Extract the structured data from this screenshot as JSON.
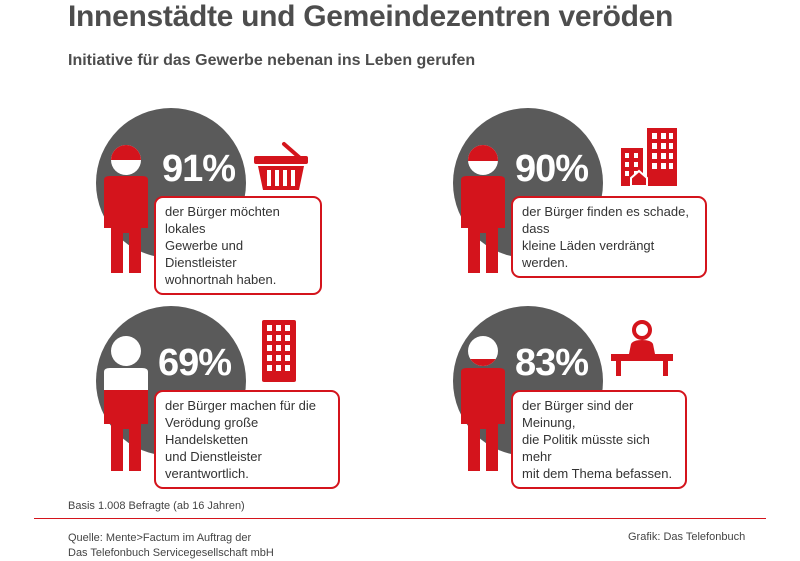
{
  "header": {
    "title": "Innenstädte und Gemeindezentren veröden",
    "subtitle": "Initiative für das Gewerbe nebenan ins Leben gerufen"
  },
  "chart_data": {
    "type": "infographic",
    "unit": "%",
    "items": [
      {
        "value": 91,
        "label": "91%",
        "text": "der Bürger möchten lokales\nGewerbe und Dienstleister\nwohnortnah haben.",
        "icon": "shopping-basket-icon"
      },
      {
        "value": 90,
        "label": "90%",
        "text": "der Bürger finden es schade, dass\nkleine Läden verdrängt werden.",
        "icon": "city-buildings-icon"
      },
      {
        "value": 69,
        "label": "69%",
        "text": "der Bürger machen für die\nVerödung große Handelsketten\nund Dienstleister verantwortlich.",
        "icon": "office-tower-icon"
      },
      {
        "value": 83,
        "label": "83%",
        "text": "der Bürger sind der Meinung,\ndie Politik müsste sich mehr\nmit dem Thema befassen.",
        "icon": "politician-podium-icon"
      }
    ]
  },
  "colors": {
    "accent": "#d4141c",
    "circle": "#5a5a5a",
    "text": "#4d4d4d"
  },
  "footer": {
    "base_note": "Basis 1.008 Befragte (ab 16 Jahren)",
    "source": "Quelle: Mente>Factum im Auftrag der\n               Das Telefonbuch Servicegesellschaft mbH",
    "credit": "Grafik: Das Telefonbuch"
  }
}
